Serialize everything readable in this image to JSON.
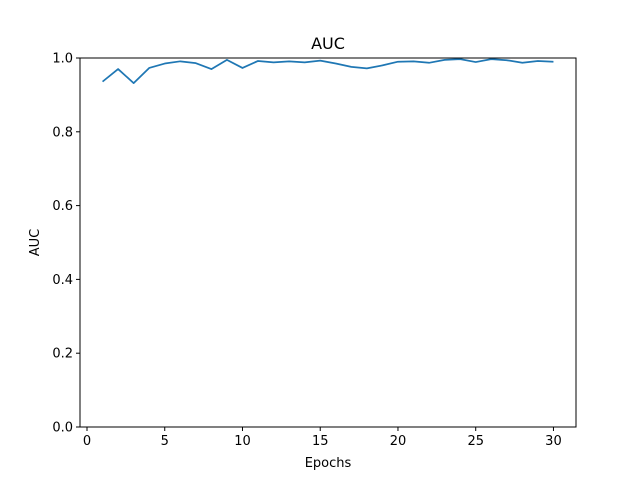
{
  "chart_data": {
    "type": "line",
    "title": "AUC",
    "xlabel": "Epochs",
    "ylabel": "AUC",
    "xlim": [
      -0.45,
      31.45
    ],
    "ylim": [
      0.0,
      1.0
    ],
    "xticks": [
      0,
      5,
      10,
      15,
      20,
      25,
      30
    ],
    "yticks": [
      0.0,
      0.2,
      0.4,
      0.6,
      0.8,
      1.0
    ],
    "xtick_labels": [
      "0",
      "5",
      "10",
      "15",
      "20",
      "25",
      "30"
    ],
    "ytick_labels": [
      "0.0",
      "0.2",
      "0.4",
      "0.6",
      "0.8",
      "1.0"
    ],
    "grid": false,
    "series": [
      {
        "color": "#1f77b4",
        "x": [
          1,
          2,
          3,
          4,
          5,
          6,
          7,
          8,
          9,
          10,
          11,
          12,
          13,
          14,
          15,
          16,
          17,
          18,
          19,
          20,
          21,
          22,
          23,
          24,
          25,
          26,
          27,
          28,
          29,
          30
        ],
        "y": [
          0.936,
          0.97,
          0.932,
          0.973,
          0.985,
          0.991,
          0.986,
          0.97,
          0.995,
          0.973,
          0.992,
          0.988,
          0.991,
          0.988,
          0.993,
          0.985,
          0.976,
          0.972,
          0.98,
          0.99,
          0.991,
          0.987,
          0.995,
          0.997,
          0.989,
          0.997,
          0.994,
          0.987,
          0.992,
          0.99
        ]
      }
    ]
  }
}
